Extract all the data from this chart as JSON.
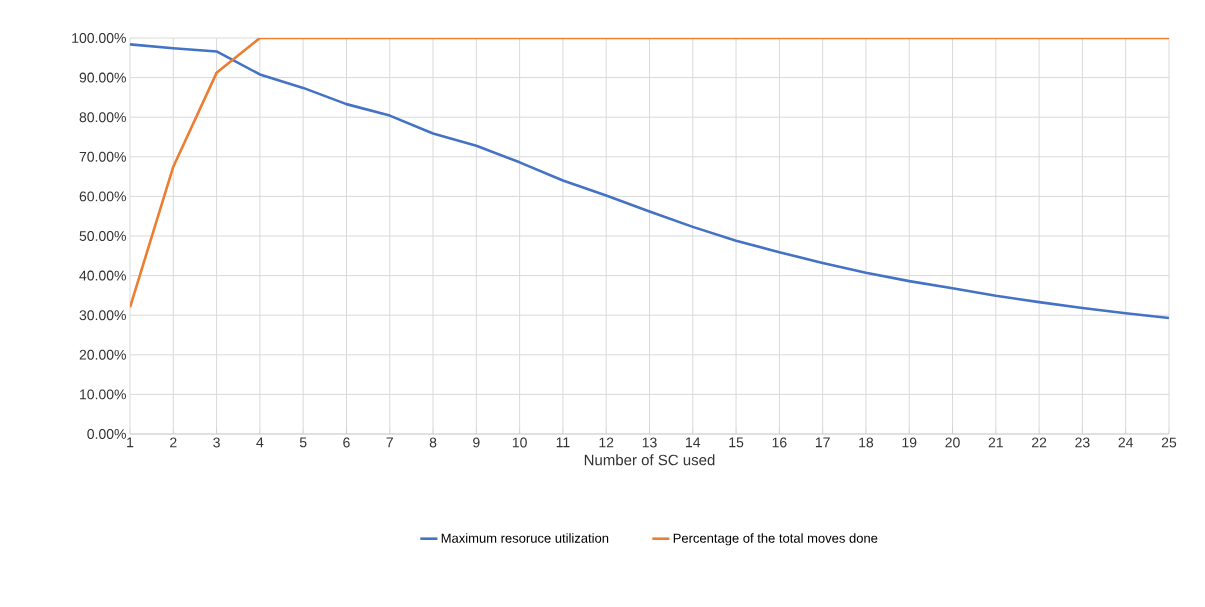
{
  "chart_data": {
    "type": "line",
    "xlabel": "Number of SC used",
    "categories": [
      "1",
      "2",
      "3",
      "4",
      "5",
      "6",
      "7",
      "8",
      "9",
      "10",
      "11",
      "12",
      "13",
      "14",
      "15",
      "16",
      "17",
      "18",
      "19",
      "20",
      "21",
      "22",
      "23",
      "24",
      "25"
    ],
    "series": [
      {
        "name": "Maximum resoruce utilization",
        "color": "#4472c4",
        "values": [
          98.4,
          97.4,
          96.6,
          90.8,
          87.4,
          83.3,
          80.4,
          75.9,
          72.8,
          68.6,
          64.0,
          60.2,
          56.2,
          52.3,
          48.8,
          45.9,
          43.2,
          40.7,
          38.6,
          36.8,
          34.9,
          33.3,
          31.8,
          30.5,
          29.3
        ]
      },
      {
        "name": "Percentage of the total moves done",
        "color": "#ed7d31",
        "values": [
          32,
          67.5,
          91.2,
          100,
          100,
          100,
          100,
          100,
          100,
          100,
          100,
          100,
          100,
          100,
          100,
          100,
          100,
          100,
          100,
          100,
          100,
          100,
          100,
          100,
          100
        ]
      }
    ],
    "ylim": [
      0,
      100
    ],
    "yticks": [
      {
        "value": 0,
        "label": "0.00%"
      },
      {
        "value": 10,
        "label": "10.00%"
      },
      {
        "value": 20,
        "label": "20.00%"
      },
      {
        "value": 30,
        "label": "30.00%"
      },
      {
        "value": 40,
        "label": "40.00%"
      },
      {
        "value": 50,
        "label": "50.00%"
      },
      {
        "value": 60,
        "label": "60.00%"
      },
      {
        "value": 70,
        "label": "70.00%"
      },
      {
        "value": 80,
        "label": "80.00%"
      },
      {
        "value": 90,
        "label": "90.00%"
      },
      {
        "value": 100,
        "label": "100.00%"
      }
    ],
    "grid": true,
    "legend": "bottom",
    "marker": "none",
    "line_style": "solid"
  }
}
